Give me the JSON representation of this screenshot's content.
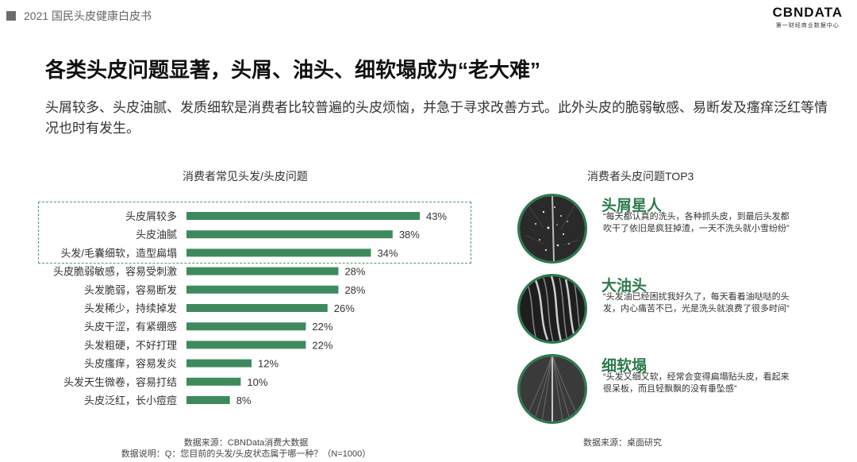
{
  "header": {
    "tag": "2021 国民头皮健康白皮书"
  },
  "logo": {
    "main": "CBNDATA",
    "sub": "第一财经商业数据中心"
  },
  "title": "各类头皮问题显著，头屑、油头、细软塌成为“老大难”",
  "subtitle": "头屑较多、头皮油腻、发质细软是消费者比较普遍的头皮烦恼，并急于寻求改善方式。此外头皮的脆弱敏感、易断发及瘙痒泛红等情况也时有发生。",
  "chart_data": {
    "type": "bar",
    "orientation": "horizontal",
    "title": "消费者常见头发/头皮问题",
    "categories": [
      "头皮屑较多",
      "头皮油腻",
      "头发/毛囊细软，造型扁塌",
      "头皮脆弱敏感，容易受刺激",
      "头发脆弱，容易断发",
      "头发稀少，持续掉发",
      "头皮干涩，有紧绷感",
      "头发粗硬，不好打理",
      "头皮瘙痒，容易发炎",
      "头发天生微卷，容易打结",
      "头皮泛红，长小痘痘"
    ],
    "values": [
      43,
      38,
      34,
      28,
      28,
      26,
      22,
      22,
      12,
      10,
      8
    ],
    "value_labels": [
      "43%",
      "38%",
      "34%",
      "28%",
      "28%",
      "26%",
      "22%",
      "22%",
      "12%",
      "10%",
      "8%"
    ],
    "unit": "%",
    "xlim": [
      0,
      43
    ],
    "highlighted_count": 3,
    "bar_color": "#3e8a5e",
    "grid": false,
    "legend": "none"
  },
  "source_left": "数据来源：CBNData消费大数据",
  "note_left": "数据说明：Q：您目前的头发/头皮状态属于哪一种？（N=1000）",
  "top3": {
    "title": "消费者头皮问题TOP3",
    "items": [
      {
        "name": "头屑星人",
        "quote": "“每天都认真的洗头，各种抓头皮，到最后头发都吹干了依旧是疯狂掉渣，一天不洗头就小雪纷纷”",
        "image_icon": "dandruff-scalp-photo"
      },
      {
        "name": "大油头",
        "quote": "“头发油已经困扰我好久了，每天看着油哒哒的头发，内心痛苦不已，光是洗头就浪费了很多时间”",
        "image_icon": "oily-hair-photo"
      },
      {
        "name": "细软塌",
        "quote": "“头发又细又软，经常会变得扁塌贴头皮，看起来很呆板，而且轻飘飘的没有垂坠感”",
        "image_icon": "flat-hair-photo"
      }
    ],
    "source": "数据来源：桌面研究"
  },
  "colors": {
    "accent": "#2e7a4c",
    "bar": "#3e8a5e",
    "highlight_border": "#4a9a6a"
  }
}
